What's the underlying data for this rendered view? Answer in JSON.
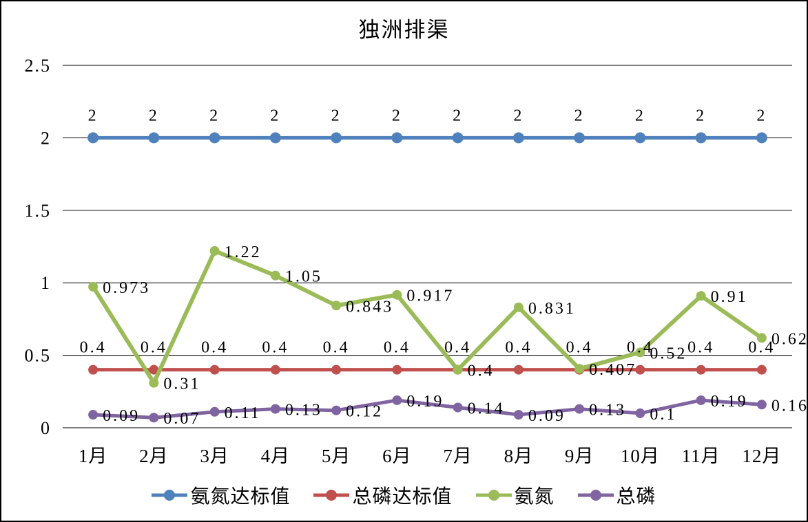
{
  "chart_data": {
    "type": "line",
    "title": "独洲排渠",
    "categories": [
      "1月",
      "2月",
      "3月",
      "4月",
      "5月",
      "6月",
      "7月",
      "8月",
      "9月",
      "10月",
      "11月",
      "12月"
    ],
    "series": [
      {
        "name": "氨氮达标值",
        "color": "#4F81BD",
        "label_position": "above",
        "values": [
          2,
          2,
          2,
          2,
          2,
          2,
          2,
          2,
          2,
          2,
          2,
          2
        ]
      },
      {
        "name": "总磷达标值",
        "color": "#C0504D",
        "label_position": "above",
        "values": [
          0.4,
          0.4,
          0.4,
          0.4,
          0.4,
          0.4,
          0.4,
          0.4,
          0.4,
          0.4,
          0.4,
          0.4
        ]
      },
      {
        "name": "氨氮",
        "color": "#9BBB59",
        "label_position": "right",
        "values": [
          0.973,
          0.31,
          1.22,
          1.05,
          0.843,
          0.917,
          0.4,
          0.831,
          0.407,
          0.52,
          0.91,
          0.62
        ]
      },
      {
        "name": "总磷",
        "color": "#8064A2",
        "label_position": "right",
        "values": [
          0.09,
          0.07,
          0.11,
          0.13,
          0.12,
          0.19,
          0.14,
          0.09,
          0.13,
          0.1,
          0.19,
          0.16
        ]
      }
    ],
    "yticks": [
      "0",
      "0.5",
      "1",
      "1.5",
      "2",
      "2.5"
    ],
    "ylim": [
      0,
      2.5
    ],
    "ytick_interval": 0.5,
    "grid": true,
    "legend_position": "bottom"
  }
}
